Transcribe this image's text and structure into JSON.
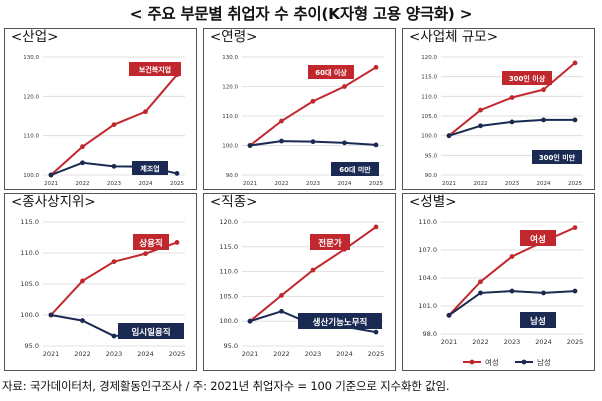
{
  "header": {
    "title": "< 주요 부문별 취업자 수 추이(K자형 고용 양극화) >"
  },
  "footnote": "자료: 국가데이터처, 경제활동인구조사 / 주: 2021년 취업자수 = 100 기준으로 지수화한 값임.",
  "colors": {
    "upper": "#c0282d",
    "lower": "#1a2a52",
    "grid": "#d9d9d9",
    "label_upper_bg": "#c0282d",
    "label_lower_bg": "#1a2a52"
  },
  "chart_data": [
    {
      "type": "line",
      "title": "<산업>",
      "x": [
        "2021",
        "2022",
        "2023",
        "2024",
        "2025"
      ],
      "yticks": [
        "100.0",
        "110.0",
        "120.0",
        "130.0"
      ],
      "ylim": [
        100,
        130
      ],
      "series": [
        {
          "name": "보건복지업",
          "values": [
            100,
            107.2,
            112.8,
            116.1,
            125.5
          ]
        },
        {
          "name": "제조업",
          "values": [
            100,
            103.1,
            102.2,
            102.1,
            100.4
          ]
        }
      ]
    },
    {
      "type": "line",
      "title": "<연령>",
      "x": [
        "2021",
        "2022",
        "2023",
        "2024",
        "2025"
      ],
      "yticks": [
        "90.0",
        "100.0",
        "110.0",
        "120.0",
        "130.0"
      ],
      "ylim": [
        90,
        130
      ],
      "series": [
        {
          "name": "60대 이상",
          "values": [
            100,
            108.3,
            115.0,
            120.0,
            126.5
          ]
        },
        {
          "name": "60대 미만",
          "values": [
            100,
            101.5,
            101.3,
            100.9,
            100.2
          ]
        }
      ]
    },
    {
      "type": "line",
      "title": "<사업체 규모>",
      "x": [
        "2021",
        "2022",
        "2023",
        "2024",
        "2025"
      ],
      "yticks": [
        "90.0",
        "95.0",
        "100.0",
        "105.0",
        "110.0",
        "115.0",
        "120.0"
      ],
      "ylim": [
        90,
        120
      ],
      "series": [
        {
          "name": "300인 이상",
          "values": [
            100,
            106.5,
            109.7,
            111.7,
            118.5
          ]
        },
        {
          "name": "300인 미만",
          "values": [
            100,
            102.5,
            103.5,
            104.0,
            104.0
          ]
        }
      ]
    },
    {
      "type": "line",
      "title": "<종사상지위>",
      "x": [
        "2021",
        "2022",
        "2023",
        "2024",
        "2025"
      ],
      "yticks": [
        "95.0",
        "100.0",
        "105.0",
        "110.0",
        "115.0"
      ],
      "ylim": [
        95,
        115
      ],
      "series": [
        {
          "name": "상용직",
          "values": [
            100,
            105.5,
            108.6,
            109.9,
            111.7
          ]
        },
        {
          "name": "임시일용직",
          "values": [
            100,
            99.1,
            96.6,
            97.1,
            96.9
          ]
        }
      ]
    },
    {
      "type": "line",
      "title": "<직종>",
      "x": [
        "2021",
        "2022",
        "2023",
        "2024",
        "2025"
      ],
      "yticks": [
        "95.0",
        "100.0",
        "105.0",
        "110.0",
        "115.0",
        "120.0"
      ],
      "ylim": [
        95,
        120
      ],
      "series": [
        {
          "name": "전문가",
          "values": [
            100,
            105.2,
            110.3,
            114.5,
            119.0
          ]
        },
        {
          "name": "생산기능노무직",
          "values": [
            100,
            102.0,
            99.3,
            98.9,
            97.8
          ]
        }
      ]
    },
    {
      "type": "line",
      "title": "<성별>",
      "x": [
        "2021",
        "2022",
        "2023",
        "2024",
        "2025"
      ],
      "yticks": [
        "98.0",
        "101.0",
        "104.0",
        "107.0",
        "110.0"
      ],
      "ylim": [
        98,
        110
      ],
      "series": [
        {
          "name": "여성",
          "values": [
            100,
            103.6,
            106.3,
            107.9,
            109.4
          ]
        },
        {
          "name": "남성",
          "values": [
            100,
            102.4,
            102.6,
            102.4,
            102.6
          ]
        }
      ],
      "legend": [
        "여성",
        "남성"
      ]
    }
  ]
}
